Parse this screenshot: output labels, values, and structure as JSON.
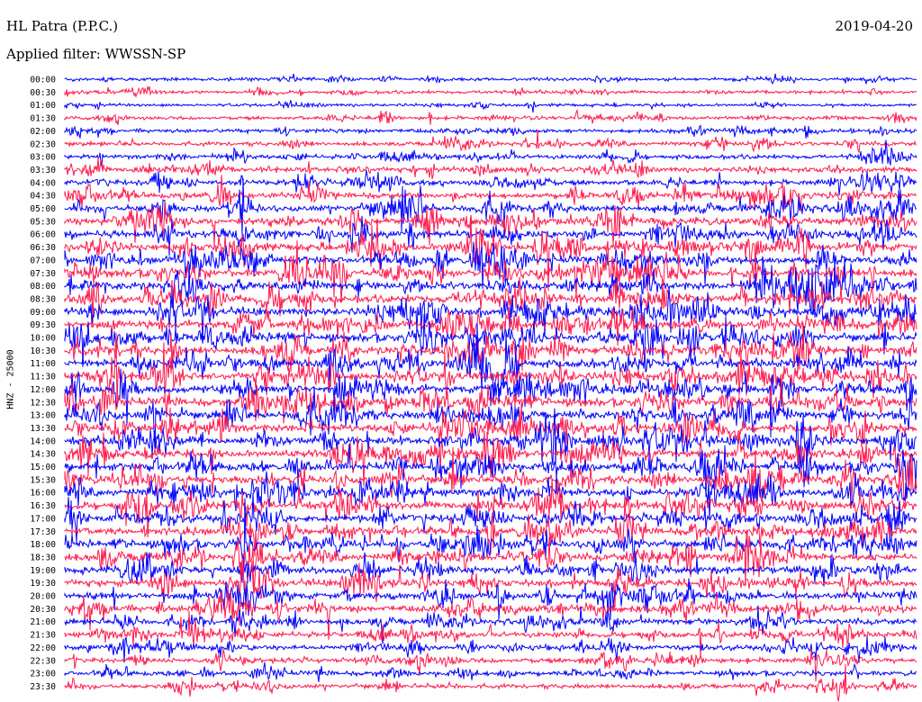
{
  "header": {
    "station": "HL Patra (P.P.C.)",
    "filter": "Applied filter: WWSSN-SP",
    "date": "2019-04-20"
  },
  "chart_data": {
    "type": "line",
    "title": "HL Patra (P.P.C.)",
    "subtitle": "Applied filter: WWSSN-SP",
    "date": "2019-04-20",
    "ylabel": "HNZ - 25000",
    "xlabel": "",
    "traces_per_hour": 2,
    "trace_duration_minutes": 30,
    "colors": [
      "#0000ff",
      "#ff1a4d"
    ],
    "series": [
      {
        "label": "00:00",
        "color": "#0000ff",
        "activity": 0.25
      },
      {
        "label": "00:30",
        "color": "#ff1a4d",
        "activity": 0.25
      },
      {
        "label": "01:00",
        "color": "#0000ff",
        "activity": 0.2
      },
      {
        "label": "01:30",
        "color": "#ff1a4d",
        "activity": 0.3
      },
      {
        "label": "02:00",
        "color": "#0000ff",
        "activity": 0.35
      },
      {
        "label": "02:30",
        "color": "#ff1a4d",
        "activity": 0.4
      },
      {
        "label": "03:00",
        "color": "#0000ff",
        "activity": 0.45
      },
      {
        "label": "03:30",
        "color": "#ff1a4d",
        "activity": 0.55
      },
      {
        "label": "04:00",
        "color": "#0000ff",
        "activity": 0.6
      },
      {
        "label": "04:30",
        "color": "#ff1a4d",
        "activity": 0.7
      },
      {
        "label": "05:00",
        "color": "#0000ff",
        "activity": 0.8
      },
      {
        "label": "05:30",
        "color": "#ff1a4d",
        "activity": 0.85
      },
      {
        "label": "06:00",
        "color": "#0000ff",
        "activity": 0.9
      },
      {
        "label": "06:30",
        "color": "#ff1a4d",
        "activity": 0.95
      },
      {
        "label": "07:00",
        "color": "#0000ff",
        "activity": 1.0
      },
      {
        "label": "07:30",
        "color": "#ff1a4d",
        "activity": 1.0
      },
      {
        "label": "08:00",
        "color": "#0000ff",
        "activity": 1.0
      },
      {
        "label": "08:30",
        "color": "#ff1a4d",
        "activity": 1.0
      },
      {
        "label": "09:00",
        "color": "#0000ff",
        "activity": 1.0
      },
      {
        "label": "09:30",
        "color": "#ff1a4d",
        "activity": 1.0
      },
      {
        "label": "10:00",
        "color": "#0000ff",
        "activity": 1.0
      },
      {
        "label": "10:30",
        "color": "#ff1a4d",
        "activity": 1.0
      },
      {
        "label": "11:00",
        "color": "#0000ff",
        "activity": 1.0
      },
      {
        "label": "11:30",
        "color": "#ff1a4d",
        "activity": 1.0
      },
      {
        "label": "12:00",
        "color": "#0000ff",
        "activity": 1.0
      },
      {
        "label": "12:30",
        "color": "#ff1a4d",
        "activity": 1.0
      },
      {
        "label": "13:00",
        "color": "#0000ff",
        "activity": 1.0
      },
      {
        "label": "13:30",
        "color": "#ff1a4d",
        "activity": 1.0
      },
      {
        "label": "14:00",
        "color": "#0000ff",
        "activity": 1.0
      },
      {
        "label": "14:30",
        "color": "#ff1a4d",
        "activity": 1.0
      },
      {
        "label": "15:00",
        "color": "#0000ff",
        "activity": 1.0
      },
      {
        "label": "15:30",
        "color": "#ff1a4d",
        "activity": 1.0
      },
      {
        "label": "16:00",
        "color": "#0000ff",
        "activity": 1.0
      },
      {
        "label": "16:30",
        "color": "#ff1a4d",
        "activity": 1.0
      },
      {
        "label": "17:00",
        "color": "#0000ff",
        "activity": 0.95
      },
      {
        "label": "17:30",
        "color": "#ff1a4d",
        "activity": 0.95
      },
      {
        "label": "18:00",
        "color": "#0000ff",
        "activity": 0.9
      },
      {
        "label": "18:30",
        "color": "#ff1a4d",
        "activity": 0.9
      },
      {
        "label": "19:00",
        "color": "#0000ff",
        "activity": 0.85
      },
      {
        "label": "19:30",
        "color": "#ff1a4d",
        "activity": 0.85
      },
      {
        "label": "20:00",
        "color": "#0000ff",
        "activity": 0.8
      },
      {
        "label": "20:30",
        "color": "#ff1a4d",
        "activity": 0.75
      },
      {
        "label": "21:00",
        "color": "#0000ff",
        "activity": 0.7
      },
      {
        "label": "21:30",
        "color": "#ff1a4d",
        "activity": 0.65
      },
      {
        "label": "22:00",
        "color": "#0000ff",
        "activity": 0.6
      },
      {
        "label": "22:30",
        "color": "#ff1a4d",
        "activity": 0.55
      },
      {
        "label": "23:00",
        "color": "#0000ff",
        "activity": 0.5
      },
      {
        "label": "23:30",
        "color": "#ff1a4d",
        "activity": 0.45
      }
    ]
  }
}
